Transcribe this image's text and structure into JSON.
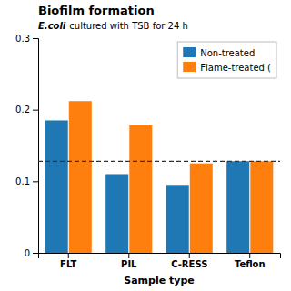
{
  "chart_data": {
    "type": "bar",
    "title": "Biofilm formation",
    "xlabel": "Sample type",
    "annotations": [
      "E.coli",
      "cultured with TSB for 24 h"
    ],
    "categories": [
      "FLT",
      "PIL",
      "C-RESS",
      "Teflon"
    ],
    "series": [
      {
        "name": "Non-treated",
        "values": [
          0.185,
          0.11,
          0.095,
          0.128
        ]
      },
      {
        "name": "Flame-treated (",
        "values": [
          0.212,
          0.178,
          0.125,
          0.128
        ]
      }
    ],
    "reference_line": 0.128,
    "ylim": [
      0,
      0.3
    ],
    "yticks": [
      0,
      0.1,
      0.2,
      0.3
    ],
    "legend": "upper right",
    "grid": false
  }
}
